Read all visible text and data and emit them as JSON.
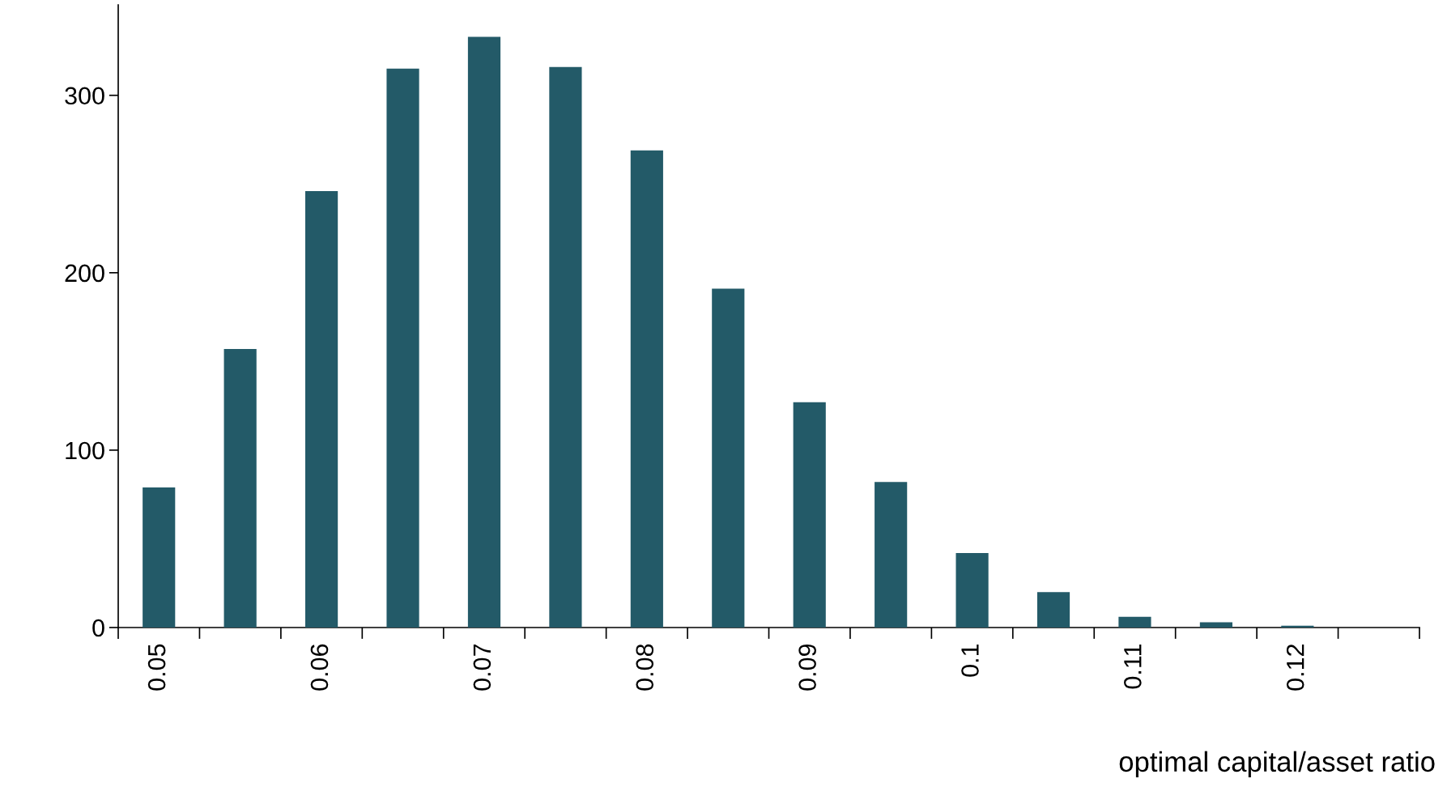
{
  "chart_data": {
    "type": "bar",
    "xlabel": "optimal capital/asset ratio",
    "categories": [
      "0.05",
      null,
      "0.06",
      null,
      "0.07",
      null,
      "0.08",
      null,
      "0.09",
      null,
      "0.1",
      null,
      "0.11",
      null,
      "0.12",
      null
    ],
    "values": [
      79,
      157,
      246,
      315,
      333,
      316,
      269,
      191,
      127,
      82,
      42,
      20,
      6,
      3,
      1,
      0
    ],
    "color": "#235a68",
    "ylim": [
      0,
      351
    ],
    "yticks": [
      0,
      100,
      200,
      300
    ],
    "grid": false
  }
}
